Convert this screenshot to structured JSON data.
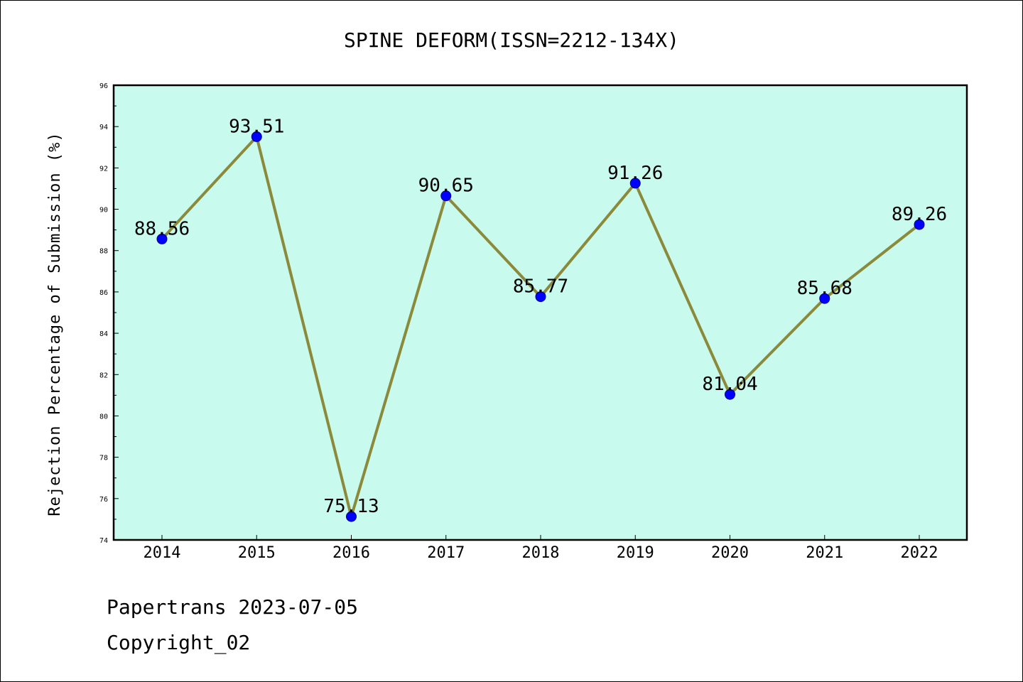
{
  "chart_data": {
    "type": "line",
    "title": "SPINE DEFORM(ISSN=2212-134X)",
    "xlabel": "",
    "ylabel": "Rejection Percentage of Submission (%)",
    "categories": [
      "2014",
      "2015",
      "2016",
      "2017",
      "2018",
      "2019",
      "2020",
      "2021",
      "2022"
    ],
    "values": [
      88.56,
      93.51,
      75.13,
      90.65,
      85.77,
      91.26,
      81.04,
      85.68,
      89.26
    ],
    "data_labels": [
      "88.56",
      "93.51",
      "75.13",
      "90.65",
      "85.77",
      "91.26",
      "81.04",
      "85.68",
      "89.26"
    ],
    "ylim": [
      74,
      96
    ],
    "yticks": [
      74,
      76,
      78,
      80,
      82,
      84,
      86,
      88,
      90,
      92,
      94,
      96
    ],
    "grid": false,
    "legend": "none",
    "colors": {
      "plot_background": "#c8fbee",
      "line": "#8b8a3a",
      "marker": "#0000ff"
    }
  },
  "footer": {
    "line1": "Papertrans 2023-07-05",
    "line2": "Copyright_02"
  }
}
